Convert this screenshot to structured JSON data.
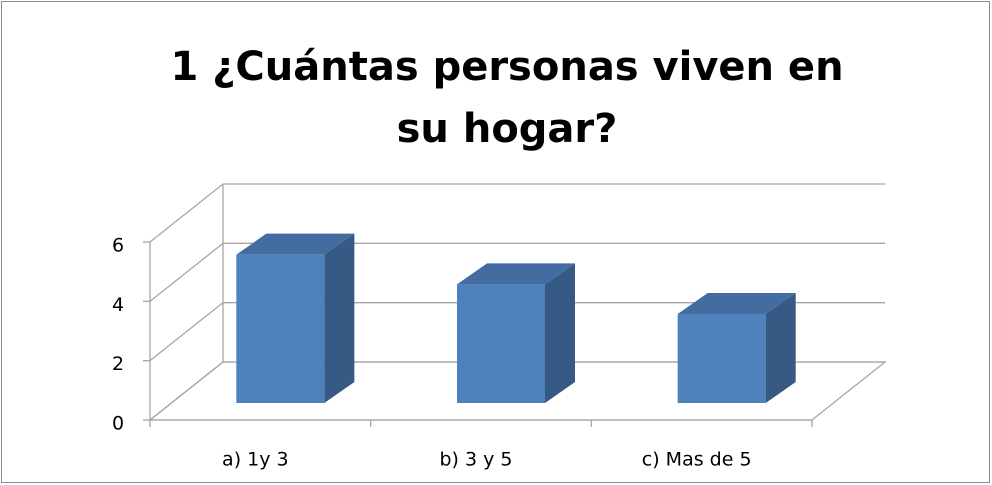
{
  "chart_data": {
    "type": "bar",
    "title": "1 ¿Cuántas personas viven en su hogar?",
    "categories": [
      "a) 1y 3",
      "b) 3 y 5",
      "c) Mas de 5"
    ],
    "values": [
      5,
      4,
      3
    ],
    "color": "#4f81bd",
    "ylim": [
      0,
      6
    ],
    "yticks": [
      0,
      2,
      4,
      6
    ],
    "grid": true
  }
}
